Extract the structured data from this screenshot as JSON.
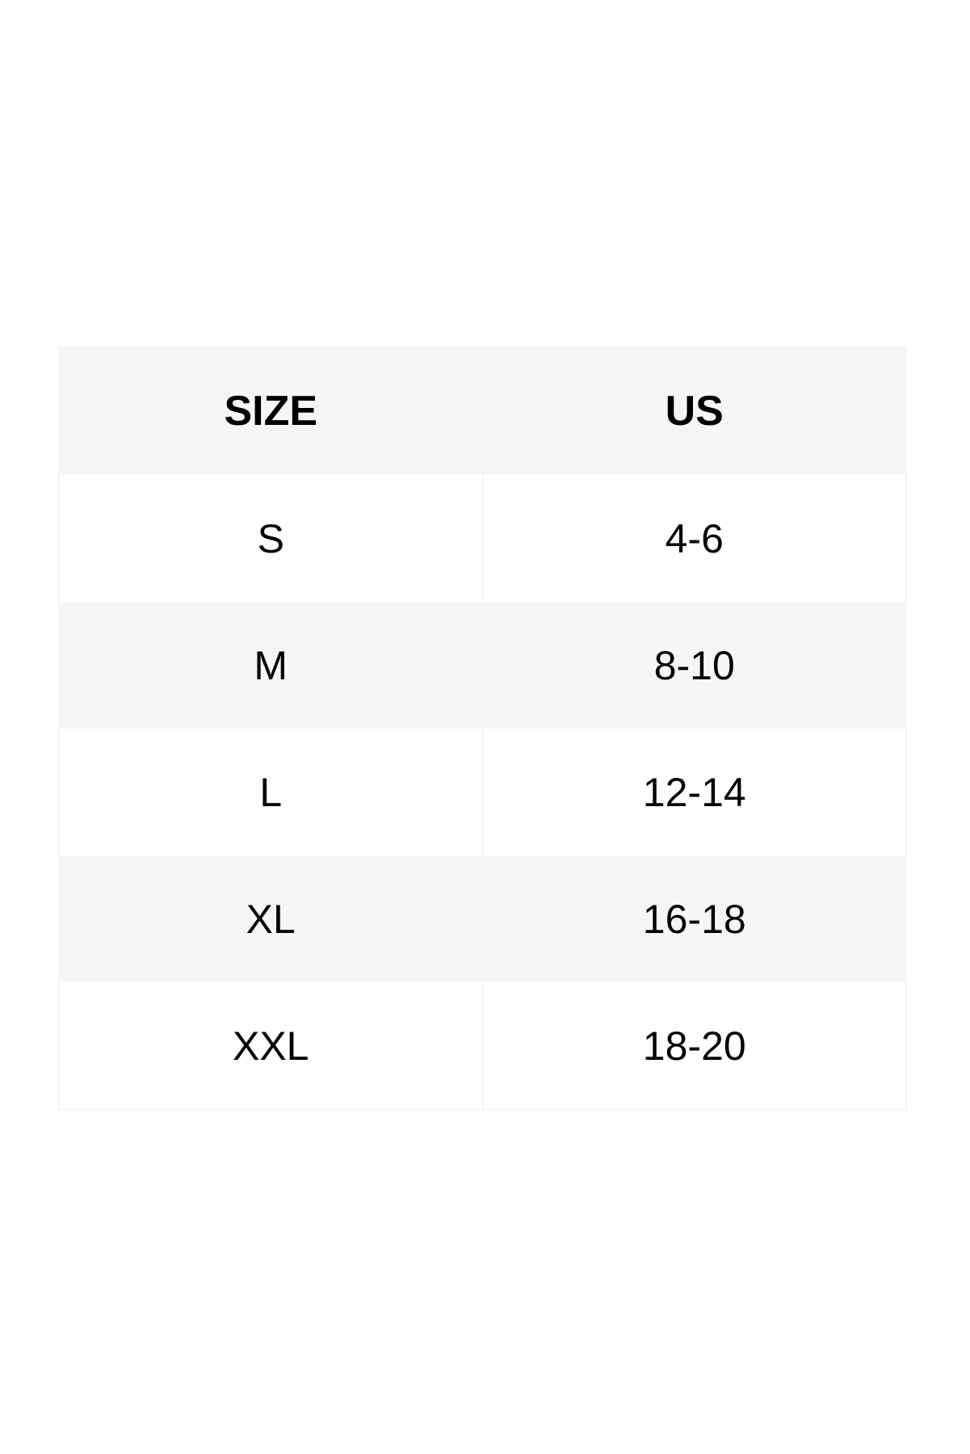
{
  "table": {
    "headers": [
      "SIZE",
      "US"
    ],
    "rows": [
      [
        "S",
        "4-6"
      ],
      [
        "M",
        "8-10"
      ],
      [
        "L",
        "12-14"
      ],
      [
        "XL",
        "16-18"
      ],
      [
        "XXL",
        "18-20"
      ]
    ]
  }
}
